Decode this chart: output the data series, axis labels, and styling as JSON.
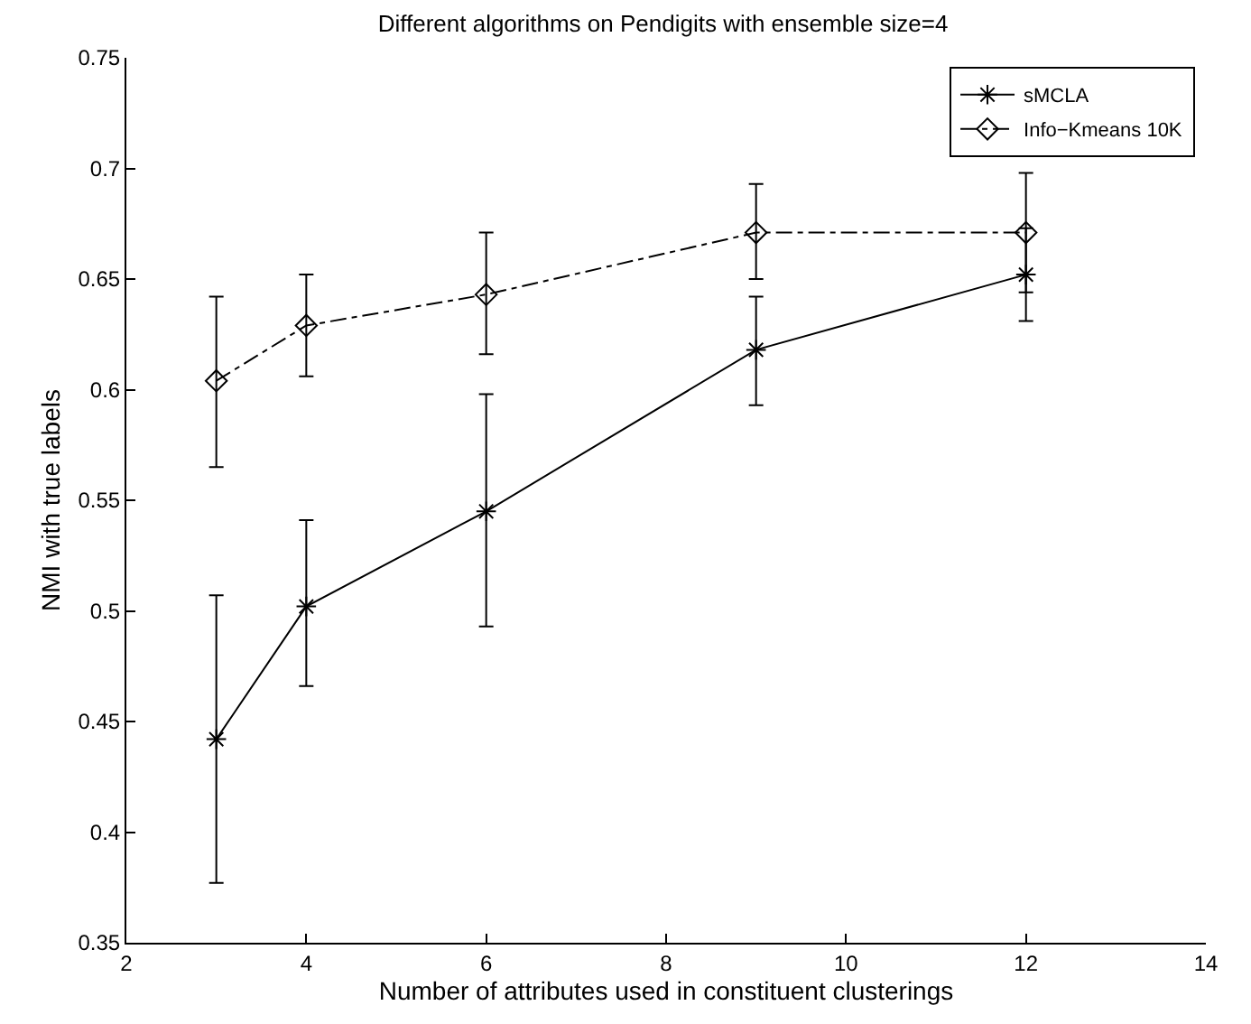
{
  "chart_data": {
    "type": "line",
    "title": "Different algorithms on Pendigits with ensemble size=4",
    "xlabel": "Number of attributes used in constituent clusterings",
    "ylabel": "NMI with true labels",
    "x": [
      3,
      4,
      6,
      9,
      12
    ],
    "series": [
      {
        "name": "sMCLA",
        "color": "#000000",
        "marker": "cross",
        "line_style": "solid",
        "values": [
          0.442,
          0.502,
          0.545,
          0.618,
          0.652
        ],
        "errors": [
          [
            0.377,
            0.507
          ],
          [
            0.466,
            0.541
          ],
          [
            0.493,
            0.598
          ],
          [
            0.593,
            0.642
          ],
          [
            0.631,
            0.673
          ]
        ]
      },
      {
        "name": "Info−Kmeans 10K",
        "color": "#000000",
        "marker": "diamond",
        "line_style": "dashdot",
        "values": [
          0.604,
          0.629,
          0.643,
          0.671,
          0.671
        ],
        "errors": [
          [
            0.565,
            0.642
          ],
          [
            0.606,
            0.652
          ],
          [
            0.616,
            0.671
          ],
          [
            0.65,
            0.693
          ],
          [
            0.644,
            0.698
          ]
        ]
      }
    ],
    "xlim": [
      2,
      14
    ],
    "xticks": [
      2,
      4,
      6,
      8,
      10,
      12,
      14
    ],
    "ylim": [
      0.35,
      0.75
    ],
    "yticks": [
      0.35,
      0.4,
      0.45,
      0.5,
      0.55,
      0.6,
      0.65,
      0.7,
      0.75
    ],
    "legend": "top right"
  }
}
